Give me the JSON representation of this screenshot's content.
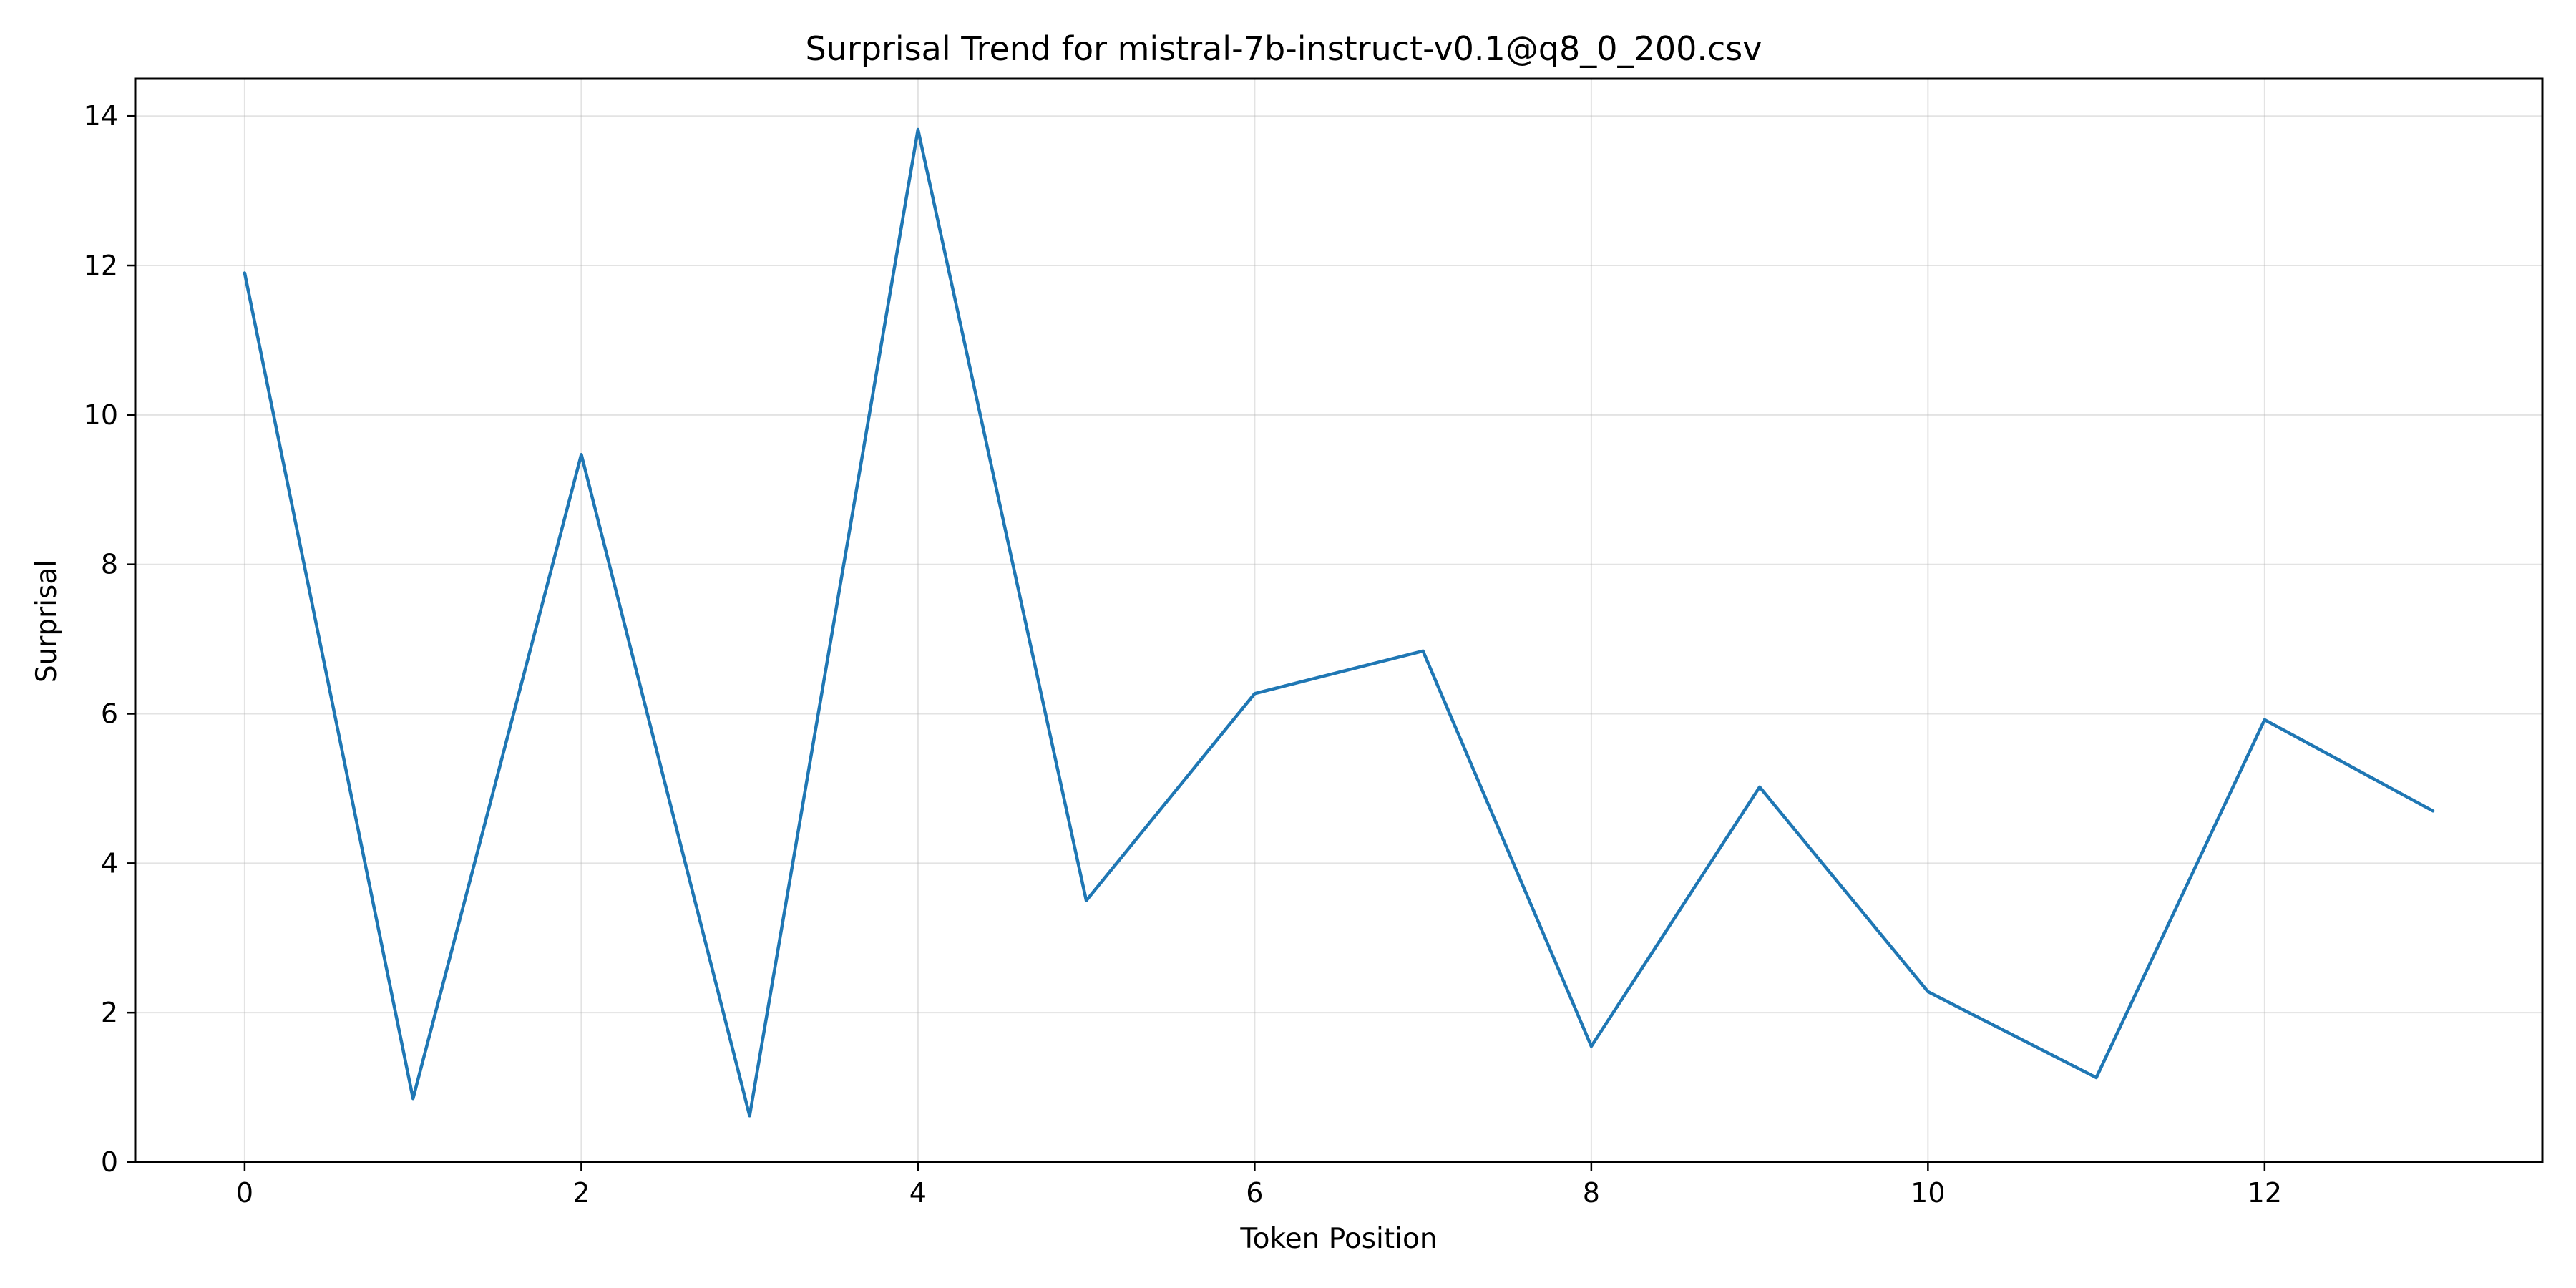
{
  "chart_data": {
    "type": "line",
    "title": "Surprisal Trend for mistral-7b-instruct-v0.1@q8_0_200.csv",
    "xlabel": "Token Position",
    "ylabel": "Surprisal",
    "x": [
      0,
      1,
      2,
      3,
      4,
      5,
      6,
      7,
      8,
      9,
      10,
      11,
      12,
      13
    ],
    "series": [
      {
        "values": [
          11.9,
          0.85,
          9.47,
          0.62,
          13.82,
          3.5,
          6.27,
          6.84,
          1.55,
          5.02,
          2.28,
          1.13,
          5.92,
          4.7
        ],
        "color": "#1f77b4"
      }
    ],
    "xlim": [
      -0.65,
      13.65
    ],
    "ylim": [
      0,
      14.5
    ],
    "xticks": [
      0,
      2,
      4,
      6,
      8,
      10,
      12
    ],
    "yticks": [
      0,
      2,
      4,
      6,
      8,
      10,
      12,
      14
    ],
    "grid": true,
    "legend": "none"
  }
}
